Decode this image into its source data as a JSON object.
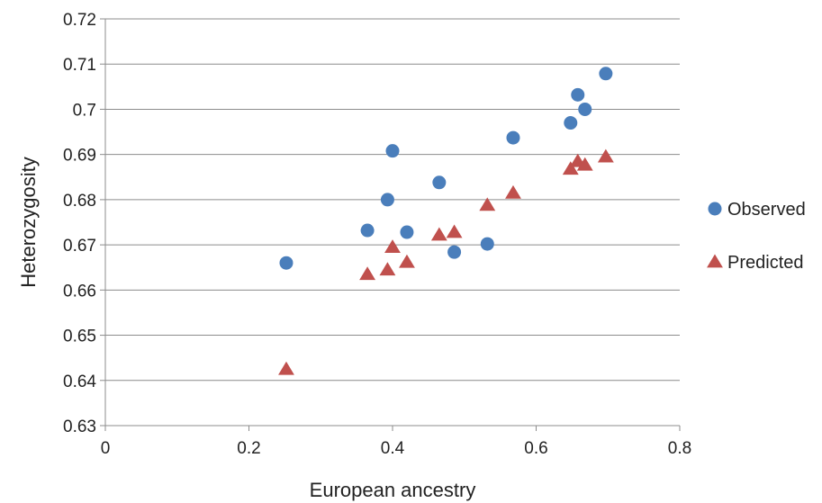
{
  "chart_data": {
    "type": "scatter",
    "title": "",
    "xlabel": "European ancestry",
    "ylabel": "Heterozygosity",
    "xlim": [
      0,
      0.8
    ],
    "ylim": [
      0.63,
      0.72
    ],
    "x_ticks": [
      0,
      0.2,
      0.4,
      0.6,
      0.8
    ],
    "x_tick_labels": [
      "0",
      "0.2",
      "0.4",
      "0.6",
      "0.8"
    ],
    "y_ticks": [
      0.63,
      0.64,
      0.65,
      0.66,
      0.67,
      0.68,
      0.69,
      0.7,
      0.71,
      0.72
    ],
    "y_tick_labels": [
      "0.63",
      "0.64",
      "0.65",
      "0.66",
      "0.67",
      "0.68",
      "0.69",
      "0.7",
      "0.71",
      "0.72"
    ],
    "grid": "horizontal",
    "legend_position": "right",
    "series": [
      {
        "name": "Observed",
        "marker": "circle",
        "color": "#4a7ebb",
        "points": [
          {
            "x": 0.252,
            "y": 0.666
          },
          {
            "x": 0.365,
            "y": 0.6732
          },
          {
            "x": 0.393,
            "y": 0.68
          },
          {
            "x": 0.4,
            "y": 0.6908
          },
          {
            "x": 0.42,
            "y": 0.6728
          },
          {
            "x": 0.465,
            "y": 0.6838
          },
          {
            "x": 0.486,
            "y": 0.6684
          },
          {
            "x": 0.532,
            "y": 0.6702
          },
          {
            "x": 0.568,
            "y": 0.6937
          },
          {
            "x": 0.648,
            "y": 0.697
          },
          {
            "x": 0.658,
            "y": 0.7032
          },
          {
            "x": 0.668,
            "y": 0.7
          },
          {
            "x": 0.697,
            "y": 0.7079
          }
        ]
      },
      {
        "name": "Predicted",
        "marker": "triangle",
        "color": "#c0504d",
        "points": [
          {
            "x": 0.252,
            "y": 0.6425
          },
          {
            "x": 0.365,
            "y": 0.6635
          },
          {
            "x": 0.393,
            "y": 0.6645
          },
          {
            "x": 0.4,
            "y": 0.6695
          },
          {
            "x": 0.42,
            "y": 0.6662
          },
          {
            "x": 0.465,
            "y": 0.6722
          },
          {
            "x": 0.486,
            "y": 0.6728
          },
          {
            "x": 0.532,
            "y": 0.6788
          },
          {
            "x": 0.568,
            "y": 0.6815
          },
          {
            "x": 0.648,
            "y": 0.6868
          },
          {
            "x": 0.658,
            "y": 0.6885
          },
          {
            "x": 0.668,
            "y": 0.6877
          },
          {
            "x": 0.697,
            "y": 0.6895
          }
        ]
      }
    ]
  }
}
